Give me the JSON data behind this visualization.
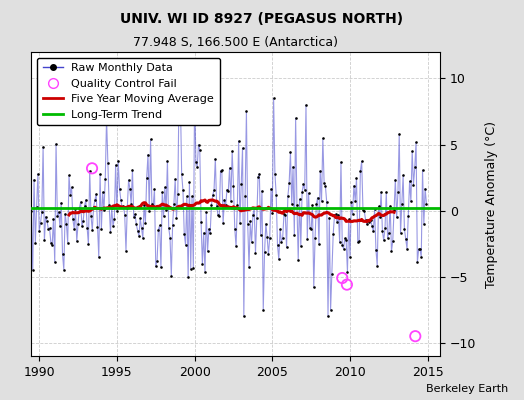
{
  "title": "UNIV. WI ID 8927 (PEGASUS NORTH)",
  "subtitle": "77.948 S, 166.500 E (Antarctica)",
  "ylabel": "Temperature Anomaly (°C)",
  "watermark": "Berkeley Earth",
  "xlim": [
    1989.5,
    2015.8
  ],
  "ylim": [
    -11,
    12
  ],
  "yticks": [
    -10,
    -5,
    0,
    5,
    10
  ],
  "xticks": [
    1990,
    1995,
    2000,
    2005,
    2010,
    2015
  ],
  "bg_color": "#e0e0e0",
  "plot_bg_color": "#ffffff",
  "grid_color": "#c0c0c0",
  "line_color": "#4444cc",
  "line_alpha": 0.55,
  "dot_color": "#000000",
  "ma_color": "#cc0000",
  "trend_color": "#00bb00",
  "trend_value": 0.18,
  "qc_color": "#ff44ff",
  "seed": 77,
  "start_year": 1989,
  "n_months": 312,
  "qc_fail_positions": [
    [
      1993.4,
      3.2
    ],
    [
      2009.5,
      -5.1
    ],
    [
      2009.8,
      -5.6
    ],
    [
      2014.2,
      -9.5
    ]
  ],
  "title_fontsize": 10,
  "subtitle_fontsize": 9,
  "tick_fontsize": 9,
  "ylabel_fontsize": 9,
  "legend_fontsize": 8
}
